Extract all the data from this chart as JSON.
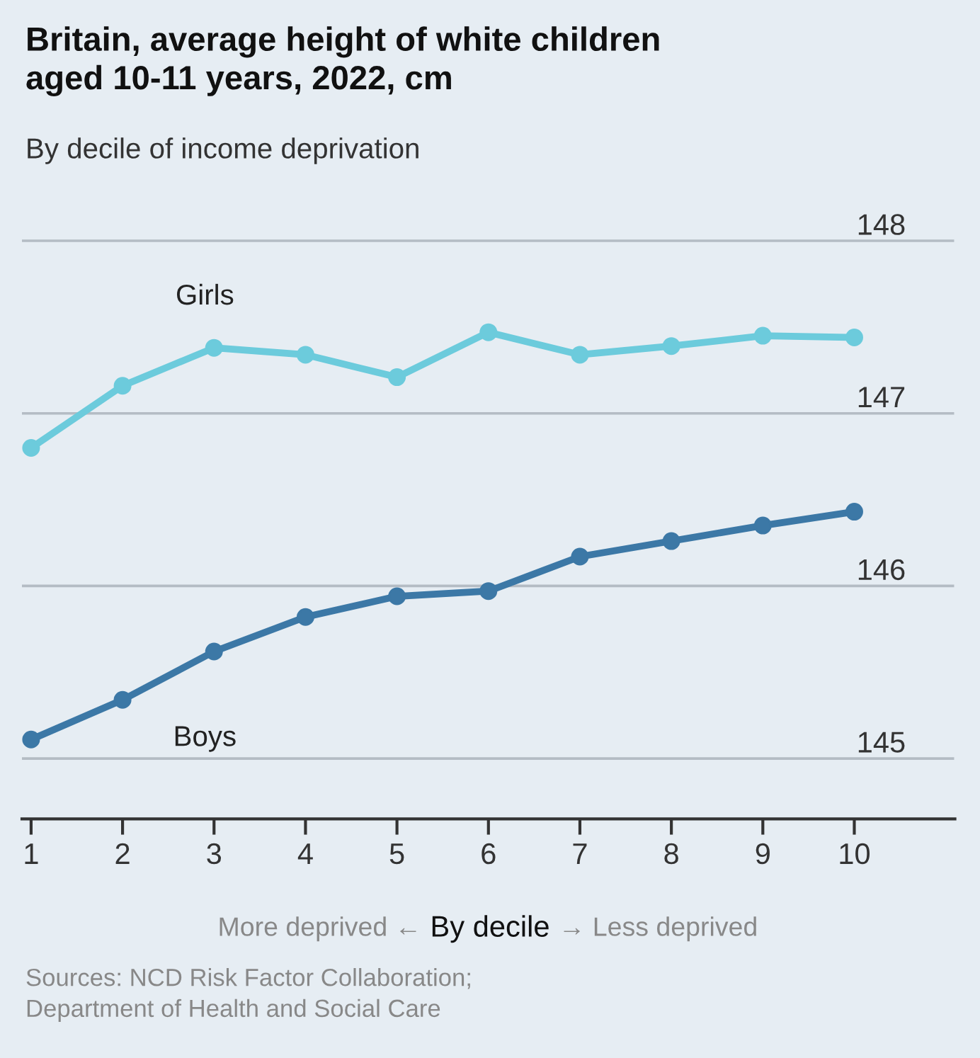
{
  "chart_data": {
    "type": "line",
    "title": "Britain, average height of white children\naged 10-11 years, 2022, cm",
    "subtitle": "By decile of income deprivation",
    "xlabel": "By decile",
    "annotations": [
      "More deprived ←",
      "→ Less deprived",
      "Sources: NCD Risk Factor Collaboration;\nDepartment of Health and Social Care"
    ],
    "x": [
      1,
      2,
      3,
      4,
      5,
      6,
      7,
      8,
      9,
      10
    ],
    "series": [
      {
        "name": "Girls",
        "color": "#6ccbdc",
        "values": [
          146.8,
          147.16,
          147.38,
          147.34,
          147.21,
          147.47,
          147.34,
          147.39,
          147.45,
          147.44
        ]
      },
      {
        "name": "Boys",
        "color": "#3c78a6",
        "values": [
          145.11,
          145.34,
          145.62,
          145.82,
          145.94,
          145.97,
          146.17,
          146.26,
          146.35,
          146.43
        ]
      }
    ],
    "xlim": [
      0.9,
      11.1
    ],
    "xticks": [
      1,
      2,
      3,
      4,
      5,
      6,
      7,
      8,
      9,
      10
    ],
    "ylim": [
      144.65,
      148.2
    ],
    "yticks": [
      145,
      146,
      147,
      148
    ],
    "grid": "y",
    "marker": "circle",
    "line_style": "solid",
    "legend": false
  }
}
